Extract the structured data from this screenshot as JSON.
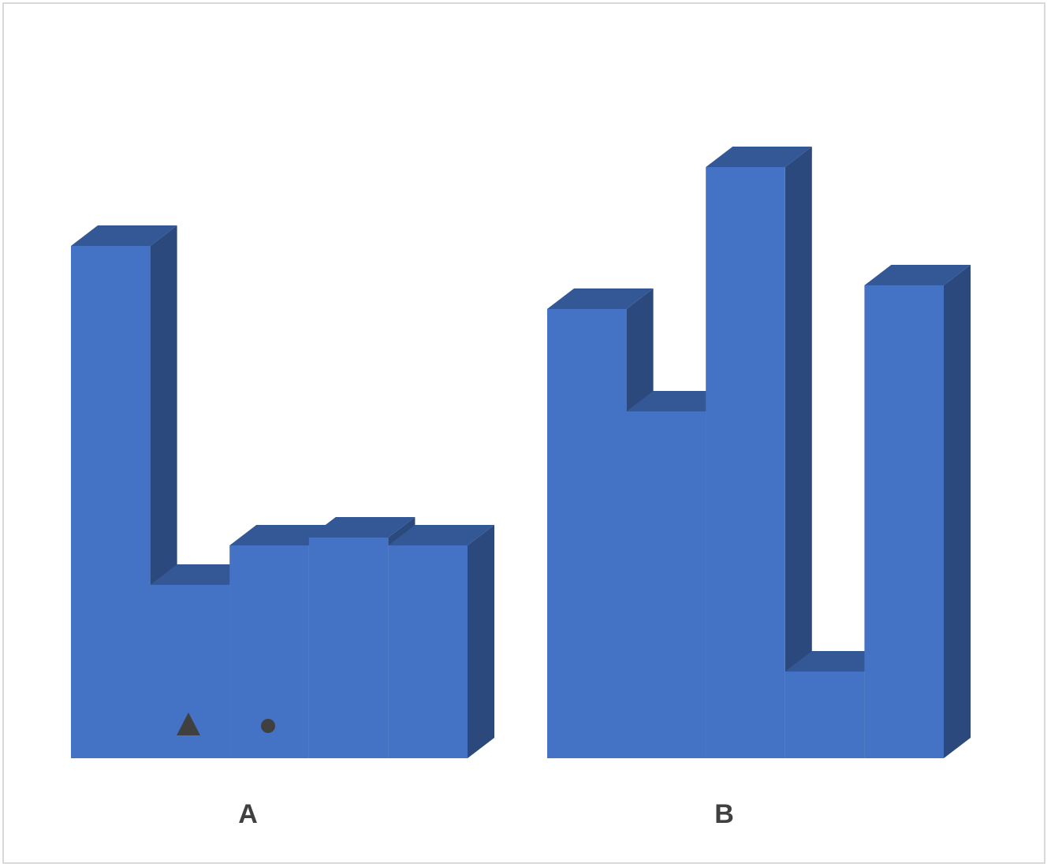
{
  "chart_data": {
    "type": "bar3d",
    "categories": [
      "A",
      "B"
    ],
    "series": [
      {
        "color": "#4472c4",
        "values": [
          6.5,
          5.7
        ]
      },
      {
        "color": "#4472c4",
        "values": [
          2.2,
          4.4
        ]
      },
      {
        "color": "#4472c4",
        "values": [
          2.7,
          7.5
        ]
      },
      {
        "color": "#4472c4",
        "values": [
          2.8,
          1.1
        ]
      },
      {
        "color": "#4472c4",
        "values": [
          2.7,
          6.0
        ]
      }
    ],
    "ylim": [
      0,
      9
    ]
  }
}
